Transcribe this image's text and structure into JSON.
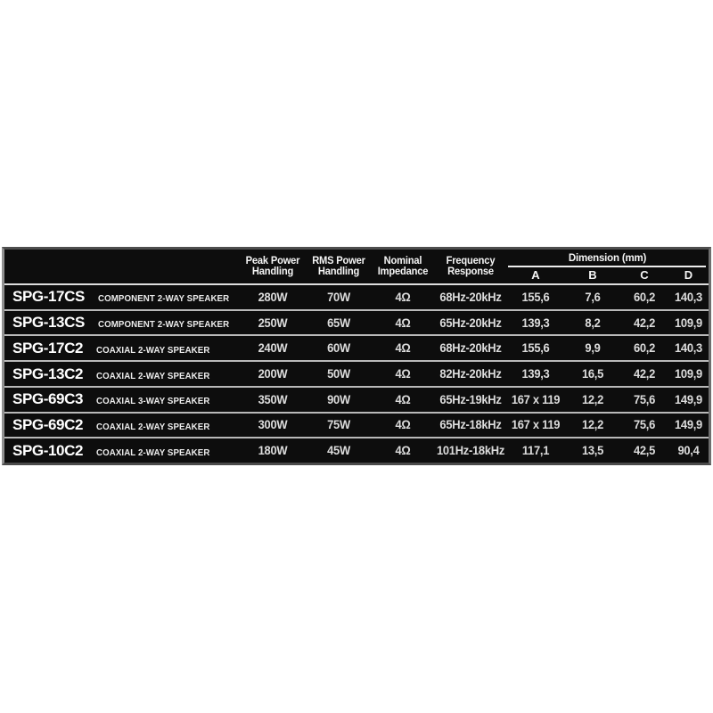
{
  "colors": {
    "page_background": "#ffffff",
    "table_background": "#0d0d0d",
    "outer_border_light": "#919191",
    "outer_border_dark": "#4a4a4a",
    "header_separator": "#dedede",
    "row_separator": "#b9b9b9",
    "header_text": "#f5f5f5",
    "model_text": "#ffffff",
    "value_text": "#dcdcdc"
  },
  "table": {
    "columns": [
      {
        "id": "peak",
        "line1": "Peak Power",
        "line2": "Handling"
      },
      {
        "id": "rms",
        "line1": "RMS Power",
        "line2": "Handling"
      },
      {
        "id": "impedance",
        "line1": "Nominal",
        "line2": "Impedance"
      },
      {
        "id": "frequency",
        "line1": "Frequency",
        "line2": "Response"
      }
    ],
    "dimension_group": {
      "label": "Dimension (mm)",
      "sub_columns": [
        "A",
        "B",
        "C",
        "D"
      ]
    },
    "rows": [
      {
        "model": "SPG-17CS",
        "type": "COMPONENT 2-WAY SPEAKER",
        "peak": "280W",
        "rms": "70W",
        "impedance": "4Ω",
        "frequency": "68Hz-20kHz",
        "dim_a": "155,6",
        "dim_b": "7,6",
        "dim_c": "60,2",
        "dim_d": "140,3"
      },
      {
        "model": "SPG-13CS",
        "type": "COMPONENT 2-WAY SPEAKER",
        "peak": "250W",
        "rms": "65W",
        "impedance": "4Ω",
        "frequency": "65Hz-20kHz",
        "dim_a": "139,3",
        "dim_b": "8,2",
        "dim_c": "42,2",
        "dim_d": "109,9"
      },
      {
        "model": "SPG-17C2",
        "type": "COAXIAL 2-WAY SPEAKER",
        "peak": "240W",
        "rms": "60W",
        "impedance": "4Ω",
        "frequency": "68Hz-20kHz",
        "dim_a": "155,6",
        "dim_b": "9,9",
        "dim_c": "60,2",
        "dim_d": "140,3"
      },
      {
        "model": "SPG-13C2",
        "type": "COAXIAL 2-WAY SPEAKER",
        "peak": "200W",
        "rms": "50W",
        "impedance": "4Ω",
        "frequency": "82Hz-20kHz",
        "dim_a": "139,3",
        "dim_b": "16,5",
        "dim_c": "42,2",
        "dim_d": "109,9"
      },
      {
        "model": "SPG-69C3",
        "type": "COAXIAL 3-WAY SPEAKER",
        "peak": "350W",
        "rms": "90W",
        "impedance": "4Ω",
        "frequency": "65Hz-19kHz",
        "dim_a": "167 x 119",
        "dim_b": "12,2",
        "dim_c": "75,6",
        "dim_d": "149,9"
      },
      {
        "model": "SPG-69C2",
        "type": "COAXIAL 2-WAY SPEAKER",
        "peak": "300W",
        "rms": "75W",
        "impedance": "4Ω",
        "frequency": "65Hz-18kHz",
        "dim_a": "167 x 119",
        "dim_b": "12,2",
        "dim_c": "75,6",
        "dim_d": "149,9"
      },
      {
        "model": "SPG-10C2",
        "type": "COAXIAL 2-WAY SPEAKER",
        "peak": "180W",
        "rms": "45W",
        "impedance": "4Ω",
        "frequency": "101Hz-18kHz",
        "dim_a": "117,1",
        "dim_b": "13,5",
        "dim_c": "42,5",
        "dim_d": "90,4"
      }
    ]
  }
}
